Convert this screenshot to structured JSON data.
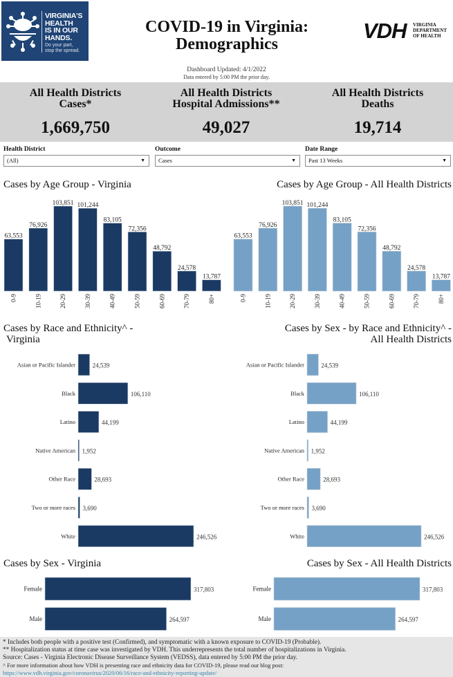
{
  "header": {
    "logo_left": {
      "lines": [
        "VIRGINIA'S",
        "HEALTH",
        "IS IN OUR",
        "HANDS."
      ],
      "sub_lines": [
        "Do your part,",
        "stop the spread."
      ]
    },
    "title_line1": "COVID-19 in Virginia:",
    "title_line2": "Demographics",
    "logo_right": {
      "mark": "VDH",
      "lines": [
        "VIRGINIA",
        "DEPARTMENT",
        "OF HEALTH"
      ]
    },
    "updated": "Dashboard Updated: 4/1/2022",
    "data_note": "Data entered by 5:00 PM the prior day."
  },
  "kpis": [
    {
      "label_line1": "All Health Districts",
      "label_line2": "Cases*",
      "value": "1,669,750"
    },
    {
      "label_line1": "All Health Districts",
      "label_line2": "Hospital Admissions**",
      "value": "49,027"
    },
    {
      "label_line1": "All Health Districts",
      "label_line2": "Deaths",
      "value": "19,714"
    }
  ],
  "filters": [
    {
      "label": "Health District",
      "value": "(All)",
      "icon": "dropdown-arrow-icon"
    },
    {
      "label": "Outcome",
      "value": "Cases",
      "icon": "dropdown-arrow-icon"
    },
    {
      "label": "Date Range",
      "value": "Past 13 Weeks",
      "icon": "dropdown-arrow-icon"
    }
  ],
  "colors": {
    "virginia_bar": "#1b3a63",
    "district_bar": "#76a1c6",
    "kpi_band": "#d3d3d3",
    "footer_bg": "#e6e6e6",
    "link": "#3a82a8"
  },
  "chart_data": [
    {
      "id": "age_va",
      "type": "bar",
      "title": "Cases by Age Group - Virginia",
      "categories": [
        "0-9",
        "10-19",
        "20-29",
        "30-39",
        "40-49",
        "50-59",
        "60-69",
        "70-79",
        "80+"
      ],
      "values": [
        63553,
        76926,
        103851,
        101244,
        83105,
        72356,
        48792,
        24578,
        13787
      ],
      "labels": [
        "63,553",
        "76,926",
        "103,851",
        "101,244",
        "83,105",
        "72,356",
        "48,792",
        "24,578",
        "13,787"
      ],
      "xlabel": "",
      "ylabel": "",
      "grid": false,
      "color": "#1b3a63"
    },
    {
      "id": "age_district",
      "type": "bar",
      "title": "Cases by Age Group - All Health Districts",
      "categories": [
        "0-9",
        "10-19",
        "20-29",
        "30-39",
        "40-49",
        "50-59",
        "60-69",
        "70-79",
        "80+"
      ],
      "values": [
        63553,
        76926,
        103851,
        101244,
        83105,
        72356,
        48792,
        24578,
        13787
      ],
      "labels": [
        "63,553",
        "76,926",
        "103,851",
        "101,244",
        "83,105",
        "72,356",
        "48,792",
        "24,578",
        "13,787"
      ],
      "xlabel": "",
      "ylabel": "",
      "grid": false,
      "color": "#76a1c6"
    },
    {
      "id": "race_va",
      "type": "bar",
      "orientation": "horizontal",
      "title_line1": "Cases by Race and Ethnicity^ -",
      "title_line2": "Virginia",
      "categories": [
        "Asian or Pacific Islander",
        "Black",
        "Latino",
        "Native American",
        "Other Race",
        "Two or more races",
        "White"
      ],
      "values": [
        24539,
        106110,
        44199,
        1952,
        28693,
        3690,
        246526
      ],
      "labels": [
        "24,539",
        "106,110",
        "44,199",
        "1,952",
        "28,693",
        "3,690",
        "246,526"
      ],
      "grid": false,
      "color": "#1b3a63"
    },
    {
      "id": "race_district",
      "type": "bar",
      "orientation": "horizontal",
      "title_line1": "Cases by Sex - by Race and Ethnicity^ -",
      "title_line2": "All Health Districts",
      "categories": [
        "Asian or Pacific Islander",
        "Black",
        "Latino",
        "Native American",
        "Other Race",
        "Two or more races",
        "White"
      ],
      "values": [
        24539,
        106110,
        44199,
        1952,
        28693,
        3690,
        246526
      ],
      "labels": [
        "24,539",
        "106,110",
        "44,199",
        "1,952",
        "28,693",
        "3,690",
        "246,526"
      ],
      "grid": false,
      "color": "#76a1c6"
    },
    {
      "id": "sex_va",
      "type": "bar",
      "orientation": "horizontal",
      "title": "Cases by Sex - Virginia",
      "categories": [
        "Female",
        "Male"
      ],
      "values": [
        317803,
        264597
      ],
      "labels": [
        "317,803",
        "264,597"
      ],
      "grid": false,
      "color": "#1b3a63"
    },
    {
      "id": "sex_district",
      "type": "bar",
      "orientation": "horizontal",
      "title": "Cases by Sex - All Health Districts",
      "categories": [
        "Female",
        "Male"
      ],
      "values": [
        317803,
        264597
      ],
      "labels": [
        "317,803",
        "264,597"
      ],
      "grid": false,
      "color": "#76a1c6"
    }
  ],
  "footer": {
    "note1": "* Includes both people with a positive test (Confirmed), and symptomatic with a known exposure to COVID-19 (Probable).",
    "note2": "** Hospitalization status at time case was investigated by VDH. This underrepresents the total number of hospitalizations in Virginia.",
    "source": "Source:  Cases - Virginia Electronic Disease Surveillance System (VEDSS), data entered by 5:00 PM the prior day.",
    "note3": "^ For more information about how VDH is presenting race and ethnicity data for COVID-19, please read our blog post:",
    "link": "https://www.vdh.virginia.gov/coronavirus/2020/06/16/race-and-ethnicity-reporting-update/"
  }
}
